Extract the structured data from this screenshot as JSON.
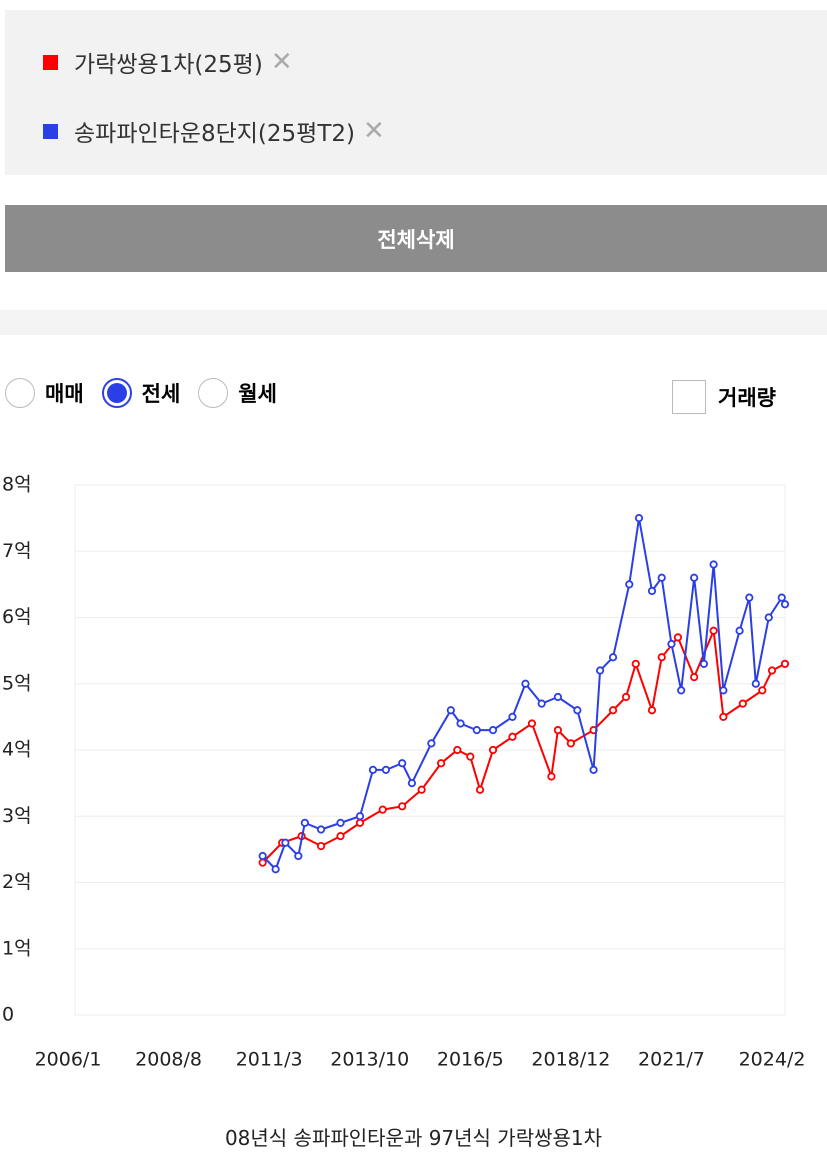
{
  "button": "전체삭제",
  "tabs": {
    "options": [
      "매매",
      "전세",
      "월세"
    ],
    "selected": 1
  },
  "checkbox": "거래량",
  "caption": "08년식 송파파인타운과 97년식 가락쌍용1차",
  "chart_data": {
    "type": "line",
    "grid": true,
    "xlim": [
      "2006/1",
      "2024/6"
    ],
    "xticks": [
      "2006/1",
      "2008/8",
      "2011/3",
      "2013/10",
      "2016/5",
      "2018/12",
      "2021/7",
      "2024/2"
    ],
    "ylim": [
      0,
      8
    ],
    "yticks": [
      0,
      {
        "value": 1,
        "label": "1억"
      },
      {
        "value": 2,
        "label": "2억"
      },
      {
        "value": 3,
        "label": "3억"
      },
      {
        "value": 4,
        "label": "4억"
      },
      {
        "value": 5,
        "label": "5억"
      },
      {
        "value": 6,
        "label": "6억"
      },
      {
        "value": 7,
        "label": "7억"
      },
      {
        "value": 8,
        "label": "8억"
      }
    ],
    "series": [
      {
        "name": "가락쌍용1차(25평)",
        "color": "#ff0000",
        "x": [
          "2011/1",
          "2011/7",
          "2012/1",
          "2012/7",
          "2013/1",
          "2013/7",
          "2014/2",
          "2014/8",
          "2015/2",
          "2015/8",
          "2016/1",
          "2016/5",
          "2016/8",
          "2016/12",
          "2017/6",
          "2017/12",
          "2018/6",
          "2018/8",
          "2018/12",
          "2019/7",
          "2020/1",
          "2020/5",
          "2020/8",
          "2021/1",
          "2021/4",
          "2021/9",
          "2022/2",
          "2022/8",
          "2022/11",
          "2023/5",
          "2023/11",
          "2024/2",
          "2024/6"
        ],
        "values": [
          2.3,
          2.6,
          2.7,
          2.55,
          2.7,
          2.9,
          3.1,
          3.15,
          3.4,
          3.8,
          4.0,
          3.9,
          3.4,
          4.0,
          4.2,
          4.4,
          3.6,
          4.3,
          4.1,
          4.3,
          4.6,
          4.8,
          5.3,
          4.6,
          5.4,
          5.7,
          5.1,
          5.8,
          4.5,
          4.7,
          4.9,
          5.2,
          5.3
        ]
      },
      {
        "name": "송파파인타운8단지(25평T2)",
        "color": "#2b3fe6",
        "x": [
          "2011/1",
          "2011/5",
          "2011/8",
          "2011/12",
          "2012/2",
          "2012/7",
          "2013/1",
          "2013/7",
          "2013/11",
          "2014/3",
          "2014/8",
          "2014/11",
          "2015/5",
          "2015/11",
          "2016/2",
          "2016/7",
          "2016/12",
          "2017/6",
          "2017/10",
          "2018/3",
          "2018/8",
          "2019/2",
          "2019/7",
          "2019/9",
          "2020/1",
          "2020/6",
          "2020/9",
          "2021/1",
          "2021/4",
          "2021/7",
          "2021/10",
          "2022/2",
          "2022/5",
          "2022/8",
          "2022/11",
          "2023/4",
          "2023/7",
          "2023/9",
          "2024/1",
          "2024/5",
          "2024/6"
        ],
        "values": [
          2.4,
          2.2,
          2.6,
          2.4,
          2.9,
          2.8,
          2.9,
          3.0,
          3.7,
          3.7,
          3.8,
          3.5,
          4.1,
          4.6,
          4.4,
          4.3,
          4.3,
          4.5,
          5.0,
          4.7,
          4.8,
          4.6,
          3.7,
          5.2,
          5.4,
          6.5,
          7.5,
          6.4,
          6.6,
          5.6,
          4.9,
          6.6,
          5.3,
          6.8,
          4.9,
          5.8,
          6.3,
          5.0,
          6.0,
          6.3,
          6.2
        ]
      }
    ]
  }
}
